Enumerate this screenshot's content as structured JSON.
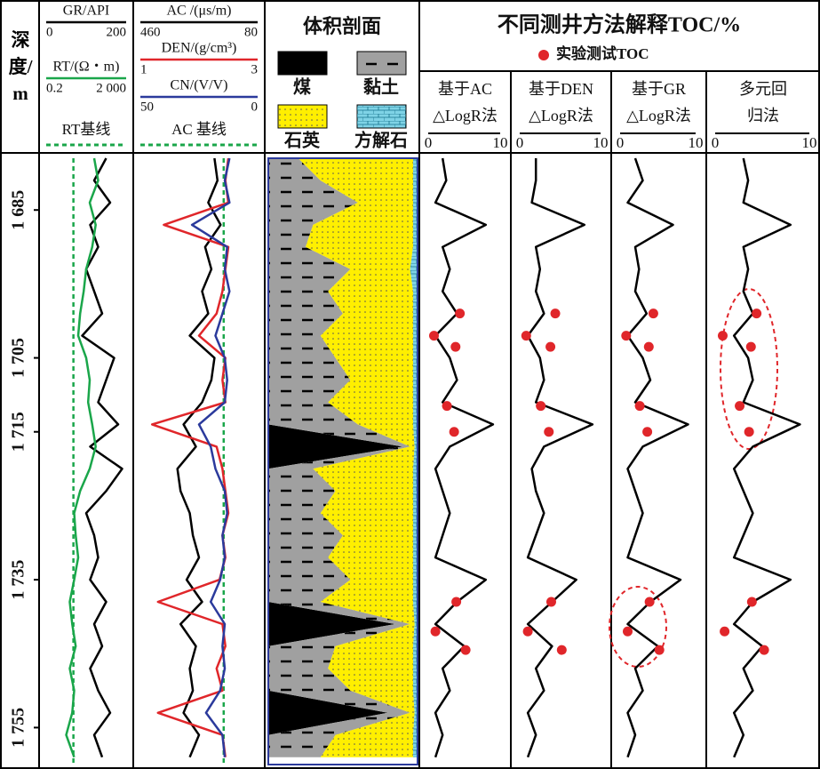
{
  "depth": {
    "label": "深度/m",
    "ylim": [
      1678,
      1760
    ],
    "ticks": [
      {
        "value": 1685,
        "label": "1 685"
      },
      {
        "value": 1705,
        "label": "1 705"
      },
      {
        "value": 1715,
        "label": "1 715"
      },
      {
        "value": 1735,
        "label": "1 735"
      },
      {
        "value": 1755,
        "label": "1 755"
      }
    ]
  },
  "samples": [
    1678,
    1681,
    1684,
    1687,
    1690,
    1693,
    1696,
    1699,
    1702,
    1705,
    1708,
    1711,
    1714,
    1717,
    1720,
    1723,
    1726,
    1729,
    1732,
    1735,
    1738,
    1741,
    1744,
    1747,
    1750,
    1753,
    1756,
    1759
  ],
  "log_tracks": [
    {
      "baseline": {
        "label": "RT基线",
        "value": 4.6,
        "color": "#1aa64a"
      },
      "curves": [
        {
          "name": "GR/API",
          "xlim": [
            0,
            200
          ],
          "color": "#000000",
          "values": [
            150,
            120,
            160,
            110,
            130,
            100,
            120,
            140,
            90,
            170,
            150,
            130,
            180,
            110,
            190,
            150,
            100,
            120,
            130,
            110,
            150,
            120,
            140,
            110,
            130,
            160,
            120,
            140
          ]
        },
        {
          "name": "RT/(Ω・m)",
          "xlim": [
            0.2,
            {
              "value": 2000,
              "label": "2 000"
            }
          ],
          "log": true,
          "color": "#1aa64a",
          "values": [
            50,
            80,
            30,
            60,
            40,
            20,
            15,
            10,
            8,
            20,
            30,
            25,
            40,
            60,
            30,
            10,
            5,
            6,
            8,
            5,
            3,
            4,
            6,
            3,
            5,
            4,
            2,
            5
          ]
        }
      ]
    },
    {
      "baseline": {
        "label": "AC 基线",
        "value": 190,
        "color": "#1aa64a"
      },
      "curves": [
        {
          "name": "AC /(μs/m)",
          "xlim": [
            460,
            80
          ],
          "color": "#000000",
          "values": [
            220,
            210,
            240,
            200,
            250,
            230,
            260,
            240,
            300,
            220,
            230,
            260,
            320,
            280,
            340,
            330,
            300,
            290,
            270,
            310,
            260,
            330,
            280,
            300,
            290,
            320,
            270,
            300
          ]
        },
        {
          "name": "DEN/(g/cm³)",
          "xlim": [
            1,
            3
          ],
          "color": "#e0262a",
          "values": [
            2.5,
            2.45,
            2.5,
            1.4,
            2.5,
            2.45,
            2.4,
            2.3,
            2.0,
            2.45,
            2.4,
            2.45,
            1.2,
            2.3,
            2.4,
            2.45,
            2.5,
            2.4,
            2.45,
            2.35,
            1.3,
            2.4,
            2.45,
            2.3,
            2.4,
            1.3,
            2.4,
            2.45
          ]
        },
        {
          "name": "CN/(V/V)",
          "xlim": [
            50,
            0
          ],
          "color": "#2b3a9c",
          "values": [
            12,
            14,
            12,
            28,
            13,
            14,
            12,
            15,
            18,
            14,
            13,
            14,
            25,
            20,
            18,
            14,
            13,
            15,
            14,
            16,
            20,
            14,
            15,
            14,
            16,
            22,
            15,
            14
          ]
        }
      ]
    }
  ],
  "lithology": {
    "title": "体积剖面",
    "series": [
      {
        "name": "煤",
        "color": "#000000",
        "values": [
          0,
          0,
          0,
          0,
          0,
          0,
          0,
          0,
          0,
          0,
          0,
          0,
          0,
          90,
          0,
          0,
          0,
          0,
          0,
          0,
          0,
          85,
          0,
          0,
          0,
          80,
          0,
          0
        ]
      },
      {
        "name": "黏土",
        "color": "#a0a0a0",
        "values": [
          20,
          35,
          60,
          30,
          25,
          55,
          40,
          50,
          35,
          45,
          55,
          40,
          60,
          5,
          30,
          45,
          35,
          50,
          40,
          55,
          35,
          10,
          45,
          40,
          55,
          15,
          45,
          35
        ]
      },
      {
        "name": "石英",
        "color": "#ffef00",
        "values": [
          77,
          62,
          37,
          67,
          72,
          40,
          57,
          47,
          62,
          52,
          42,
          57,
          37,
          3,
          67,
          52,
          62,
          47,
          57,
          42,
          62,
          3,
          52,
          57,
          42,
          3,
          52,
          62
        ]
      },
      {
        "name": "方解石",
        "color": "#7fd3e6",
        "values": [
          3,
          3,
          3,
          3,
          3,
          5,
          3,
          3,
          3,
          3,
          3,
          3,
          3,
          2,
          3,
          3,
          3,
          3,
          3,
          3,
          3,
          2,
          3,
          3,
          3,
          2,
          3,
          3
        ]
      }
    ]
  },
  "toc": {
    "title": "不同测井方法解释TOC/%",
    "experimental": {
      "name": "实验测试TOC",
      "color": "#e0262a",
      "depth": [
        1699,
        1702,
        1703.5,
        1711.5,
        1715,
        1738,
        1742,
        1744.5
      ],
      "values": [
        4.4,
        0.8,
        3.8,
        2.6,
        3.6,
        3.9,
        1.0,
        5.2
      ]
    },
    "tracks": [
      {
        "title": [
          "基于AC",
          "△LogR法"
        ],
        "xlim": [
          0,
          10
        ],
        "values": [
          2,
          2.5,
          1,
          8,
          2,
          3,
          2,
          4,
          1,
          3,
          4,
          2,
          9,
          3,
          1,
          2,
          3,
          2,
          1,
          8,
          4,
          1,
          5,
          2,
          3,
          1,
          2,
          1
        ]
      },
      {
        "title": [
          "基于DEN",
          "△LogR法"
        ],
        "xlim": [
          0,
          10
        ],
        "values": [
          2,
          2,
          1.5,
          8,
          2,
          2.5,
          2,
          3,
          1,
          2.5,
          3,
          2,
          9,
          3,
          1.5,
          2,
          3,
          2,
          1,
          7,
          4,
          1,
          4,
          2,
          3,
          1,
          2,
          1
        ]
      },
      {
        "title": [
          "基于GR",
          "△LogR法"
        ],
        "xlim": [
          0,
          10
        ],
        "values": [
          2,
          3,
          1,
          7,
          2,
          2.5,
          2,
          3.5,
          1,
          3,
          4,
          2,
          9,
          3,
          1,
          2,
          3,
          2,
          1,
          8,
          4,
          1,
          5,
          2,
          3,
          1,
          2,
          1
        ]
      },
      {
        "title": [
          "多元回",
          "归法"
        ],
        "xlim": [
          0,
          10
        ],
        "values": [
          3,
          3.5,
          3,
          8,
          3,
          3.5,
          3,
          4,
          2,
          3.5,
          4,
          3,
          9,
          4,
          2,
          3,
          4,
          3,
          2,
          8,
          4,
          2,
          5,
          3,
          4,
          2,
          3,
          2
        ]
      }
    ]
  }
}
